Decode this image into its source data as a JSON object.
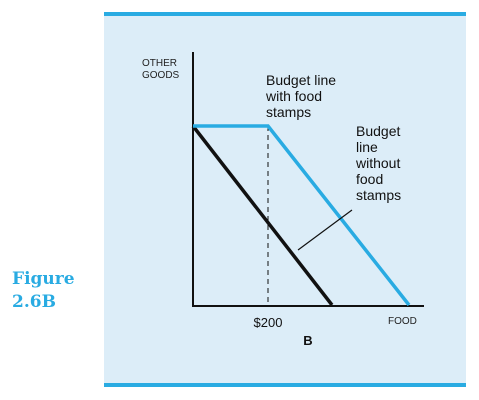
{
  "figure": {
    "label_line1": "Figure",
    "label_line2": "2.6B"
  },
  "colors": {
    "accent": "#29abe2",
    "panel": "#dcedf8",
    "ink": "#111111"
  },
  "diagram": {
    "y_axis_line1": "OTHER",
    "y_axis_line2": "GOODS",
    "x_axis_label": "FOOD",
    "tick_label": "$200",
    "panel_label": "B",
    "with_stamps_line1": "Budget line",
    "with_stamps_line2": "with food",
    "with_stamps_line3": "stamps",
    "without_stamps_line1": "Budget",
    "without_stamps_line2": "line",
    "without_stamps_line3": "without",
    "without_stamps_line4": "food",
    "without_stamps_line5": "stamps"
  }
}
